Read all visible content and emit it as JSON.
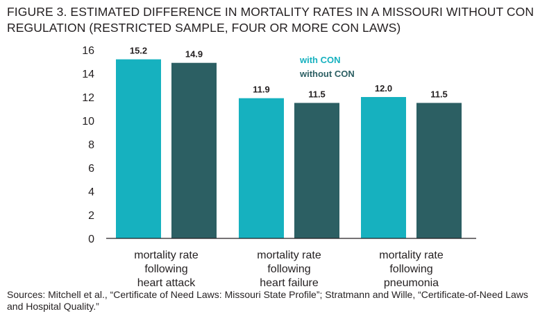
{
  "figure": {
    "title_lines": [
      "FIGURE 3. ESTIMATED DIFFERENCE IN MORTALITY RATES IN A MISSOURI WITHOUT CON",
      "REGULATION (RESTRICTED SAMPLE, FOUR OR MORE CON LAWS)"
    ],
    "source_lines": [
      "Sources: Mitchell et al., “Certificate of Need Laws: Missouri State Profile”; Stratmann and Wille, “Certificate-of-Need Laws",
      "and Hospital Quality.”"
    ]
  },
  "chart_data": {
    "type": "bar",
    "title": "FIGURE 3. ESTIMATED DIFFERENCE IN MORTALITY RATES IN A MISSOURI WITHOUT CON REGULATION (RESTRICTED SAMPLE, FOUR OR MORE CON LAWS)",
    "categories": [
      [
        "mortality rate",
        "following",
        "heart attack"
      ],
      [
        "mortality rate",
        "following",
        "heart failure"
      ],
      [
        "mortality rate",
        "following",
        "pneumonia"
      ]
    ],
    "series": [
      {
        "name": "with CON",
        "color": "#16b1bf",
        "values": [
          15.2,
          11.9,
          12.0
        ],
        "labels": [
          "15.2",
          "11.9",
          "12.0"
        ]
      },
      {
        "name": "without CON",
        "color": "#2c5f63",
        "values": [
          14.9,
          11.5,
          11.5
        ],
        "labels": [
          "14.9",
          "11.5",
          "11.5"
        ]
      }
    ],
    "ylim": [
      0,
      16
    ],
    "yticks": [
      0,
      2,
      4,
      6,
      8,
      10,
      12,
      14,
      16
    ],
    "grid": false,
    "legend_position": "top-right"
  }
}
